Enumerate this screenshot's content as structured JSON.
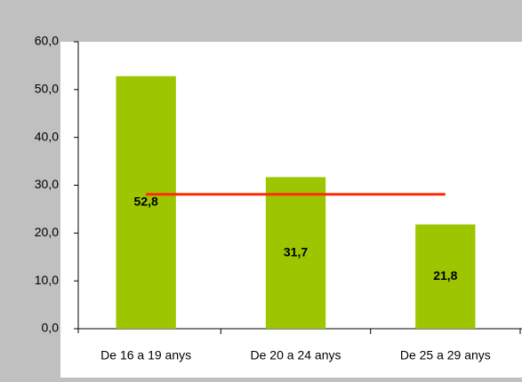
{
  "chart_data": {
    "type": "bar",
    "categories": [
      "De 16 a 19 anys",
      "De 20 a 24 anys",
      "De 25 a 29 anys"
    ],
    "series": [
      {
        "type": "bar",
        "color": "#9dc600",
        "values": [
          52.8,
          31.7,
          21.8
        ],
        "value_labels": [
          "52,8",
          "31,7",
          "21,8"
        ]
      },
      {
        "type": "line",
        "color": "#ff2a00",
        "values": [
          28.1,
          28.1,
          28.1
        ]
      }
    ],
    "ylim": [
      0,
      60
    ],
    "yticks": [
      {
        "value": 0,
        "label": "0,0"
      },
      {
        "value": 10,
        "label": "10,0"
      },
      {
        "value": 20,
        "label": "20,0"
      },
      {
        "value": 30,
        "label": "30,0"
      },
      {
        "value": 40,
        "label": "40,0"
      },
      {
        "value": 50,
        "label": "50,0"
      },
      {
        "value": 60,
        "label": "60,0"
      }
    ],
    "grid": false
  }
}
